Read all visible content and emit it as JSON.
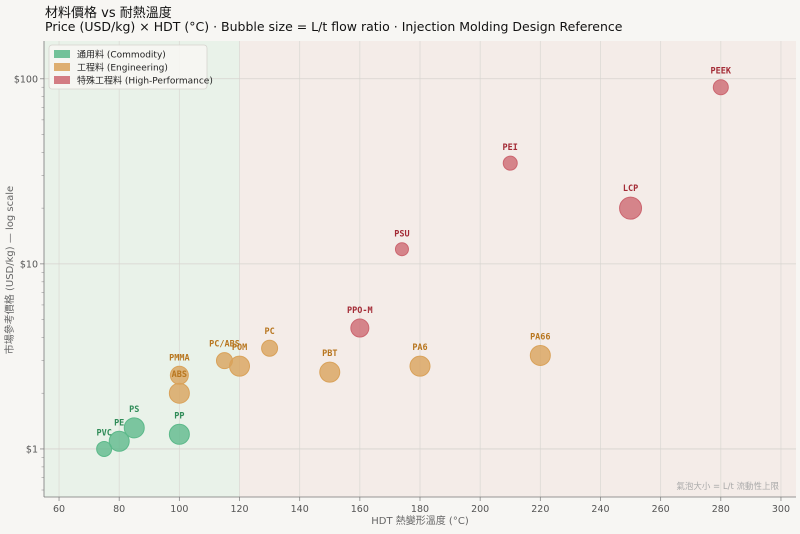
{
  "chart_data": {
    "type": "scatter",
    "title": "材料價格 vs 耐熱溫度",
    "subtitle": "Price (USD/kg) × HDT (°C)  ·  Bubble size = L/t flow ratio  ·  Injection Molding Design Reference",
    "xlabel": "HDT 熱變形溫度 (°C)",
    "ylabel": "市場參考價格 (USD/kg)  — log scale",
    "xlim": [
      55,
      305
    ],
    "ylim": [
      0.55,
      160
    ],
    "yscale": "log",
    "xticks": [
      60,
      80,
      100,
      120,
      140,
      160,
      180,
      200,
      220,
      240,
      260,
      280,
      300
    ],
    "yticks": [
      {
        "value": 1,
        "label": "$1"
      },
      {
        "value": 10,
        "label": "$10"
      },
      {
        "value": 100,
        "label": "$100"
      }
    ],
    "grid": true,
    "legend_position": "top-left",
    "note": "氣泡大小 = L/t 流動性上限",
    "series": [
      {
        "name": "通用料  (Commodity)",
        "color": "#5cb98a",
        "label_color": "#2e8b57",
        "points": [
          {
            "label": "PVC",
            "x": 75,
            "y": 1.0,
            "size": 7.5
          },
          {
            "label": "PE",
            "x": 80,
            "y": 1.1,
            "size": 10
          },
          {
            "label": "PS",
            "x": 85,
            "y": 1.3,
            "size": 10
          },
          {
            "label": "PP",
            "x": 100,
            "y": 1.2,
            "size": 10
          }
        ]
      },
      {
        "name": "工程料  (Engineering)",
        "color": "#d9a25a",
        "label_color": "#b8761f",
        "points": [
          {
            "label": "PMMA",
            "x": 100,
            "y": 2.5,
            "size": 9
          },
          {
            "label": "ABS",
            "x": 100,
            "y": 2.0,
            "size": 10
          },
          {
            "label": "PC/ABS",
            "x": 115,
            "y": 3.0,
            "size": 8
          },
          {
            "label": "POM",
            "x": 120,
            "y": 2.8,
            "size": 10
          },
          {
            "label": "PC",
            "x": 130,
            "y": 3.5,
            "size": 8
          },
          {
            "label": "PBT",
            "x": 150,
            "y": 2.6,
            "size": 10
          },
          {
            "label": "PA6",
            "x": 180,
            "y": 2.8,
            "size": 10
          },
          {
            "label": "PA66",
            "x": 220,
            "y": 3.2,
            "size": 10
          }
        ]
      },
      {
        "name": "特殊工程料  (High-Performance)",
        "color": "#cc6670",
        "label_color": "#a32a35",
        "points": [
          {
            "label": "PPO-M",
            "x": 160,
            "y": 4.5,
            "size": 9
          },
          {
            "label": "PSU",
            "x": 174,
            "y": 12,
            "size": 6.5
          },
          {
            "label": "PEI",
            "x": 210,
            "y": 35,
            "size": 7
          },
          {
            "label": "LCP",
            "x": 250,
            "y": 20,
            "size": 11
          },
          {
            "label": "PEEK",
            "x": 280,
            "y": 90,
            "size": 7.5
          }
        ]
      }
    ]
  }
}
